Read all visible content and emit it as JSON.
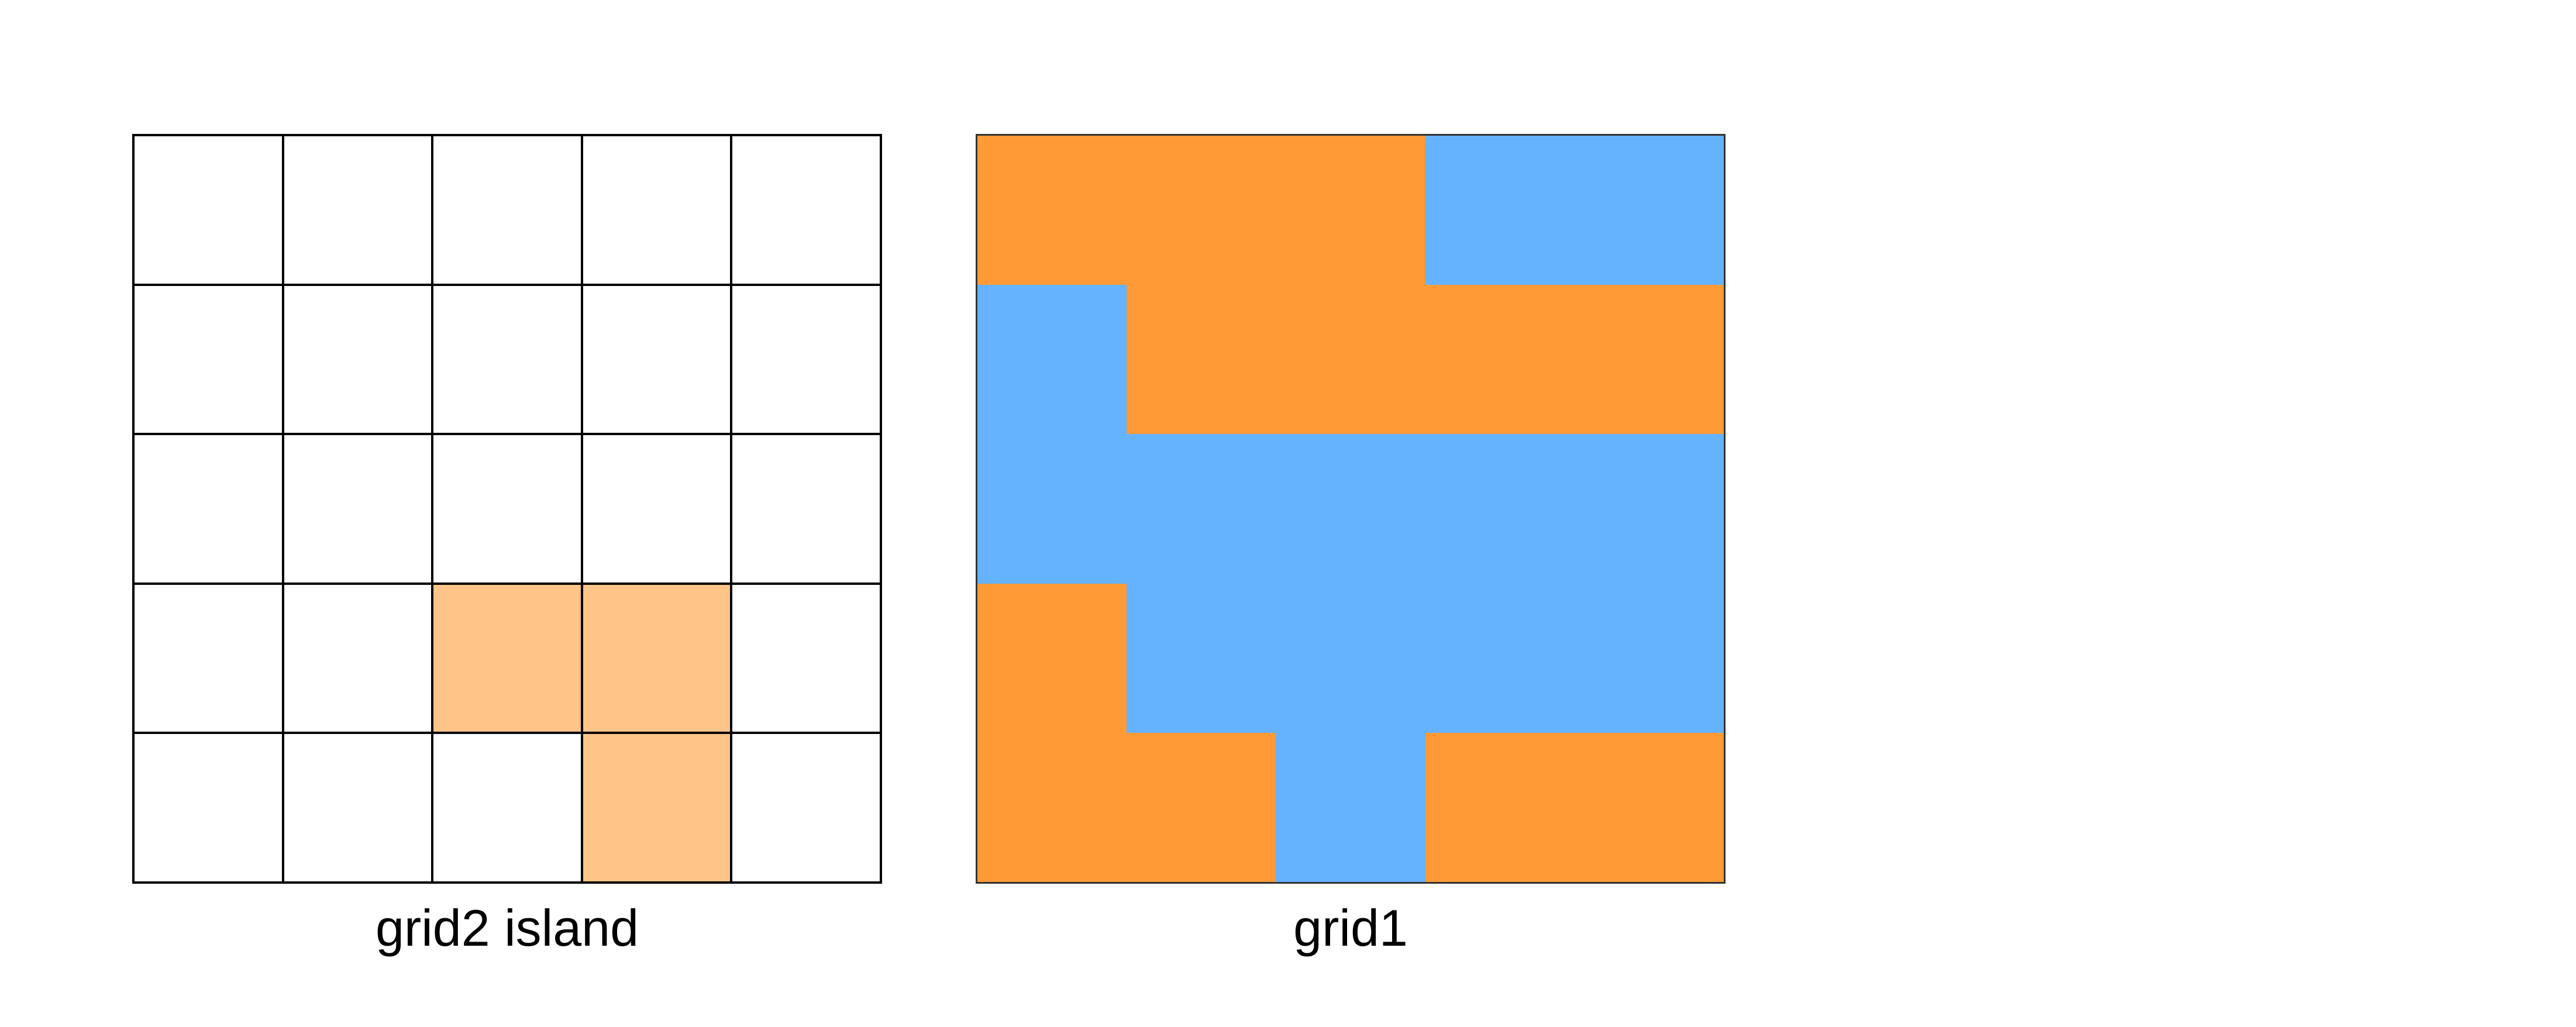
{
  "colors": {
    "island": "#FEC488",
    "water_empty": "#FFFFFF",
    "land": "#FE9B37",
    "water": "#65B2FF"
  },
  "grid2": {
    "caption": "grid2 island",
    "cells": [
      [
        0,
        0,
        0,
        0,
        0
      ],
      [
        0,
        0,
        0,
        0,
        0
      ],
      [
        0,
        0,
        0,
        0,
        0
      ],
      [
        0,
        0,
        1,
        1,
        0
      ],
      [
        0,
        0,
        0,
        1,
        0
      ]
    ]
  },
  "grid1": {
    "caption": "grid1",
    "cells": [
      [
        1,
        1,
        1,
        0,
        0
      ],
      [
        0,
        1,
        1,
        1,
        1
      ],
      [
        0,
        0,
        0,
        0,
        0
      ],
      [
        1,
        0,
        0,
        0,
        0
      ],
      [
        1,
        1,
        0,
        1,
        1
      ]
    ]
  }
}
